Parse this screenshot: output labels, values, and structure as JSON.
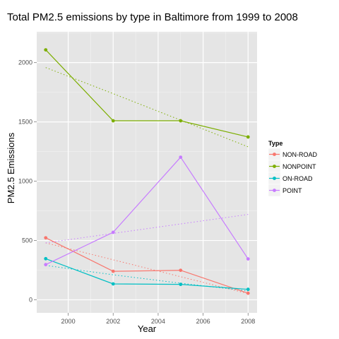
{
  "chart_data": {
    "type": "line",
    "title": "Total PM2.5 emissions by type in Baltimore from 1999 to 2008",
    "xlabel": "Year",
    "ylabel": "PM2.5 Emissions",
    "x": [
      1999,
      2002,
      2005,
      2008
    ],
    "xlim": [
      1998.6,
      2008.4
    ],
    "ylim": [
      -110,
      2260
    ],
    "xticks": [
      2000,
      2002,
      2004,
      2006,
      2008
    ],
    "yticks": [
      0,
      500,
      1000,
      1500,
      2000
    ],
    "legend": {
      "title": "Type",
      "position": "right"
    },
    "grid": true,
    "series": [
      {
        "name": "NON-ROAD",
        "color": "#F8766D",
        "values": [
          522.9,
          240.8,
          248.9,
          55.8
        ],
        "trend": [
          480.2,
          337.5,
          194.9,
          52.3
        ]
      },
      {
        "name": "NONPOINT",
        "color": "#7CAE00",
        "values": [
          2107.6,
          1509.5,
          1509.5,
          1373.2
        ],
        "trend": [
          1958.3,
          1738.3,
          1515.0,
          1290.0
        ]
      },
      {
        "name": "ON-ROAD",
        "color": "#00BFC4",
        "values": [
          346.8,
          134.3,
          130.4,
          88.3
        ],
        "trend": [
          290.0,
          211.0,
          140.0,
          75.0
        ]
      },
      {
        "name": "POINT",
        "color": "#C77CFF",
        "values": [
          296.8,
          569.3,
          1202.5,
          344.98
        ],
        "trend": [
          480.0,
          560.0,
          640.0,
          720.0
        ]
      }
    ]
  }
}
